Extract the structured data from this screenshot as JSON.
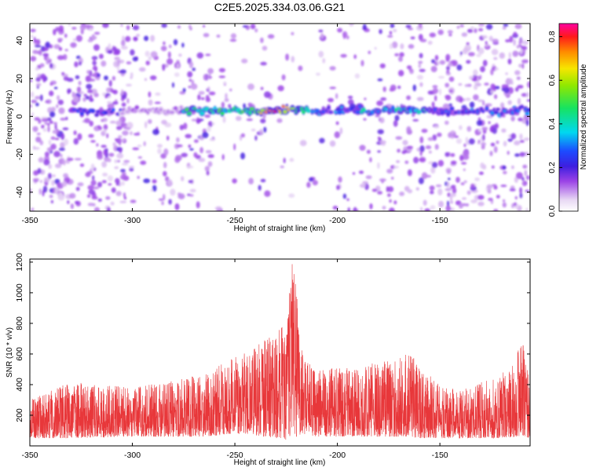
{
  "chart_data": [
    {
      "type": "heatmap",
      "title": "C2E5.2025.334.03.06.G21",
      "xlabel": "Height of straight line (km)",
      "ylabel": "Frequency (Hz)",
      "xlim": [
        -350,
        -106
      ],
      "ylim": [
        -50,
        49
      ],
      "x_ticks": [
        "-350",
        "-300",
        "-250",
        "-200",
        "-150"
      ],
      "x_tick_values": [
        -350,
        -300,
        -250,
        -200,
        -150
      ],
      "y_ticks": [
        "-40",
        "-20",
        "0",
        "20",
        "40"
      ],
      "y_tick_values": [
        -40,
        -20,
        0,
        20,
        40
      ],
      "colorbar": {
        "label": "Normalized spectral amplitude",
        "range": [
          0,
          0.86
        ],
        "ticks": [
          "0.0",
          "0.2",
          "0.4",
          "0.6",
          "0.8"
        ],
        "tick_values": [
          0,
          0.2,
          0.4,
          0.6,
          0.8
        ]
      },
      "band": {
        "frequency_hz": 3,
        "segments": [
          {
            "x": [
              -330,
              -305
            ],
            "amplitude": 0.25
          },
          {
            "x": [
              -305,
              -275
            ],
            "amplitude": 0.12
          },
          {
            "x": [
              -275,
              -215
            ],
            "amplitude": 0.45
          },
          {
            "x": [
              -215,
              -190
            ],
            "amplitude": 0.3
          },
          {
            "x": [
              -190,
              -155
            ],
            "amplitude": 0.38
          },
          {
            "x": [
              -155,
              -106
            ],
            "amplitude": 0.28
          }
        ],
        "peak": {
          "x": -230,
          "amplitude": 0.86
        }
      },
      "background_amplitude": [
        0.05,
        0.15
      ],
      "grid": false
    },
    {
      "type": "line",
      "xlabel": "Height of straight line (km)",
      "ylabel": "SNR (10 * v/v)",
      "xlim": [
        -350,
        -106
      ],
      "ylim": [
        0,
        1220
      ],
      "x_ticks": [
        "-350",
        "-300",
        "-250",
        "-200",
        "-150"
      ],
      "x_tick_values": [
        -350,
        -300,
        -250,
        -200,
        -150
      ],
      "y_ticks": [
        "200",
        "400",
        "600",
        "800",
        "1000",
        "1200"
      ],
      "y_tick_values": [
        200,
        400,
        600,
        800,
        1000,
        1200
      ],
      "color": "#e8373a",
      "envelope": {
        "x": [
          -350,
          -330,
          -300,
          -280,
          -265,
          -250,
          -240,
          -235,
          -230,
          -225,
          -222,
          -220,
          -218,
          -215,
          -210,
          -200,
          -190,
          -180,
          -170,
          -165,
          -160,
          -150,
          -140,
          -130,
          -120,
          -112,
          -110,
          -106
        ],
        "upper": [
          300,
          420,
          380,
          430,
          470,
          580,
          650,
          700,
          760,
          800,
          1220,
          1020,
          650,
          560,
          500,
          520,
          500,
          560,
          570,
          620,
          520,
          400,
          360,
          420,
          480,
          620,
          700,
          420
        ],
        "lower": [
          50,
          50,
          60,
          60,
          60,
          80,
          70,
          60,
          50,
          40,
          80,
          60,
          60,
          70,
          60,
          60,
          60,
          60,
          60,
          60,
          50,
          50,
          50,
          50,
          50,
          60,
          60,
          50
        ]
      },
      "grid": false
    }
  ]
}
